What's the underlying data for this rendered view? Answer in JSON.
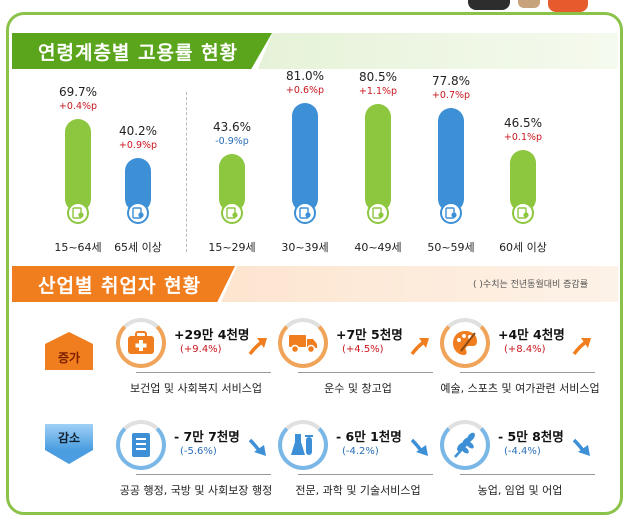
{
  "section1": {
    "title": "연령계층별 고용률 현황"
  },
  "section2": {
    "title": "산업별 취업자 현황",
    "note": "( )수치는 전년동월대비 증감률"
  },
  "chart_data": {
    "type": "bar",
    "title": "연령계층별 고용률 현황",
    "categories": [
      "15~64세",
      "65세 이상",
      "15~29세",
      "30~39세",
      "40~49세",
      "50~59세",
      "60세 이상"
    ],
    "values": [
      69.7,
      40.2,
      43.6,
      81.0,
      80.5,
      77.8,
      46.5
    ],
    "value_labels": [
      "69.7%",
      "40.2%",
      "43.6%",
      "81.0%",
      "80.5%",
      "77.8%",
      "46.5%"
    ],
    "changes": [
      "+0.4%p",
      "+0.9%p",
      "-0.9%p",
      "+0.6%p",
      "+1.1%p",
      "+0.7%p",
      "+0.1%p"
    ],
    "colors": [
      "#8dc63f",
      "#3d8fd6",
      "#8dc63f",
      "#3d8fd6",
      "#8dc63f",
      "#3d8fd6",
      "#8dc63f"
    ],
    "change_colors": [
      "#c8171e",
      "#c8171e",
      "#2a6fb8",
      "#c8171e",
      "#c8171e",
      "#c8171e",
      "#c8171e"
    ],
    "ylim": [
      0,
      100
    ],
    "grid": false,
    "legend": "none"
  },
  "industry": {
    "increase_label": "증가",
    "decrease_label": "감소",
    "increase": [
      {
        "amount": "+29만 4천명",
        "pct": "(+9.4%)",
        "name": "보건업 및 사회복지 서비스업",
        "icon": "medical-kit-icon"
      },
      {
        "amount": "+7만 5천명",
        "pct": "(+4.5%)",
        "name": "운수 및 창고업",
        "icon": "truck-icon"
      },
      {
        "amount": "+4만 4천명",
        "pct": "(+8.4%)",
        "name": "예술, 스포츠 및 여가관련 서비스업",
        "icon": "palette-icon"
      }
    ],
    "decrease": [
      {
        "amount": "- 7만 7천명",
        "pct": "(-5.6%)",
        "name": "공공 행정, 국방 및 사회보장 행정",
        "icon": "document-icon"
      },
      {
        "amount": "- 6만 1천명",
        "pct": "(-4.2%)",
        "name": "전문, 과학 및 기술서비스업",
        "icon": "flask-icon"
      },
      {
        "amount": "- 5만 8천명",
        "pct": "(-4.4%)",
        "name": "농업, 임업 및 어업",
        "icon": "wheat-icon"
      }
    ],
    "colors": {
      "increase": "#f07d1e",
      "decrease": "#3d8fd6"
    }
  }
}
